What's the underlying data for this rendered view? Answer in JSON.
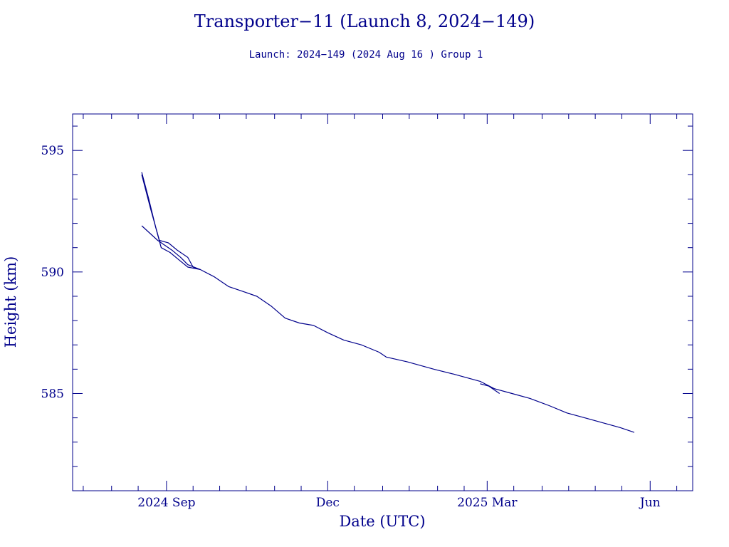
{
  "chart_data": {
    "type": "line",
    "title": "Transporter−11 (Launch 8, 2024−149)",
    "subtitle": "Launch: 2024−149  (2024 Aug 16 )  Group 1",
    "xlabel": "Date (UTC)",
    "ylabel": "Height (km)",
    "xlim": [
      "2024-07-10",
      "2025-06-25"
    ],
    "ylim": [
      581,
      596.5
    ],
    "x_ticks": [
      {
        "date": "2024-09-01",
        "label": "2024 Sep"
      },
      {
        "date": "2024-12-01",
        "label": "Dec"
      },
      {
        "date": "2025-03-01",
        "label": "2025 Mar"
      },
      {
        "date": "2025-06-01",
        "label": "Jun"
      }
    ],
    "y_ticks": [
      {
        "value": 585,
        "label": "585"
      },
      {
        "value": 590,
        "label": "590"
      },
      {
        "value": 595,
        "label": "595"
      }
    ],
    "grid": false,
    "color": "#00008b",
    "series": [
      {
        "points": [
          [
            "2024-08-18",
            594.1
          ],
          [
            "2024-08-22",
            593.0
          ],
          [
            "2024-08-26",
            591.8
          ],
          [
            "2024-08-29",
            591.0
          ],
          [
            "2024-09-03",
            590.8
          ],
          [
            "2024-09-08",
            590.5
          ],
          [
            "2024-09-13",
            590.2
          ],
          [
            "2024-09-20",
            590.1
          ],
          [
            "2024-09-28",
            589.8
          ],
          [
            "2024-10-06",
            589.4
          ],
          [
            "2024-10-14",
            589.2
          ],
          [
            "2024-10-22",
            589.0
          ],
          [
            "2024-10-30",
            588.6
          ],
          [
            "2024-11-07",
            588.1
          ],
          [
            "2024-11-15",
            587.9
          ],
          [
            "2024-11-23",
            587.8
          ],
          [
            "2024-12-01",
            587.5
          ],
          [
            "2024-12-10",
            587.2
          ],
          [
            "2024-12-20",
            587.0
          ],
          [
            "2024-12-30",
            586.7
          ],
          [
            "2025-01-03",
            586.5
          ],
          [
            "2025-01-15",
            586.3
          ],
          [
            "2025-01-30",
            586.0
          ],
          [
            "2025-02-10",
            585.8
          ],
          [
            "2025-02-25",
            585.5
          ],
          [
            "2025-03-05",
            585.2
          ],
          [
            "2025-03-15",
            585.0
          ],
          [
            "2025-03-25",
            584.8
          ],
          [
            "2025-04-05",
            584.5
          ],
          [
            "2025-04-15",
            584.2
          ],
          [
            "2025-04-25",
            584.0
          ],
          [
            "2025-05-05",
            583.8
          ],
          [
            "2025-05-15",
            583.6
          ],
          [
            "2025-05-23",
            583.4
          ]
        ]
      },
      {
        "points": [
          [
            "2024-08-18",
            594.0
          ],
          [
            "2024-08-23",
            592.6
          ],
          [
            "2024-08-28",
            591.3
          ],
          [
            "2024-09-02",
            591.2
          ],
          [
            "2024-09-07",
            590.9
          ],
          [
            "2024-09-13",
            590.6
          ],
          [
            "2024-09-16",
            590.2
          ],
          [
            "2024-09-20",
            590.1
          ]
        ]
      },
      {
        "points": [
          [
            "2024-08-18",
            591.9
          ],
          [
            "2024-08-27",
            591.3
          ],
          [
            "2024-09-04",
            590.9
          ],
          [
            "2024-09-09",
            590.6
          ],
          [
            "2024-09-13",
            590.3
          ],
          [
            "2024-09-20",
            590.1
          ]
        ]
      },
      {
        "points": [
          [
            "2025-02-25",
            585.4
          ],
          [
            "2025-03-02",
            585.3
          ],
          [
            "2025-03-08",
            585.0
          ]
        ]
      }
    ]
  }
}
